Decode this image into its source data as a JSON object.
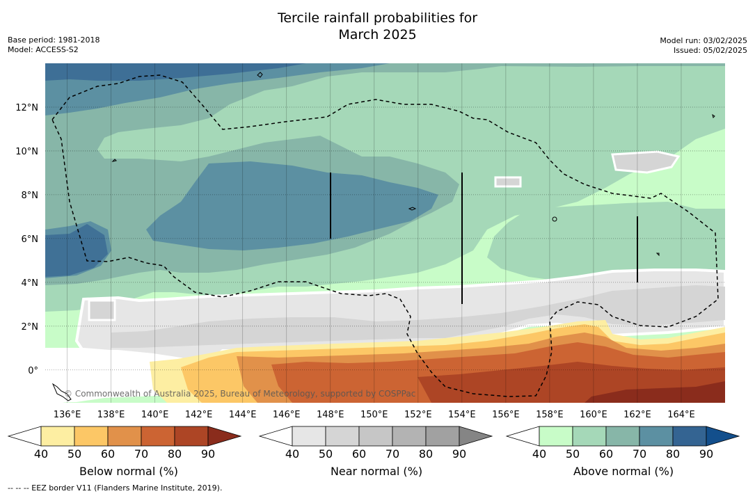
{
  "title_line1": "Tercile rainfall probabilities for",
  "title_line2": "March 2025",
  "base_period": "Base period: 1981-2018",
  "model": "Model: ACCESS-S2",
  "model_run": "Model run: 03/02/2025",
  "issued": "Issued: 05/02/2025",
  "copyright": "© Commonwealth of Australia 2025, Bureau of Meteorology, supported by COSPPac",
  "footnote": "-- -- -- EEZ border V11 (Flanders Marine Institute, 2019).",
  "map": {
    "lat_labels": [
      "12°N",
      "10°N",
      "8°N",
      "6°N",
      "4°N",
      "2°N",
      "0°"
    ],
    "lon_labels": [
      "136°E",
      "138°E",
      "140°E",
      "142°E",
      "144°E",
      "146°E",
      "148°E",
      "150°E",
      "152°E",
      "154°E",
      "156°E",
      "158°E",
      "160°E",
      "162°E",
      "164°E"
    ],
    "lat_values": [
      12,
      10,
      8,
      6,
      4,
      2,
      0
    ],
    "lon_values": [
      136,
      138,
      140,
      142,
      144,
      146,
      148,
      150,
      152,
      154,
      156,
      158,
      160,
      162,
      164
    ],
    "lon_range": [
      135,
      166
    ],
    "lat_range": [
      -1.5,
      14
    ]
  },
  "legends": [
    {
      "title": "Below normal (%)",
      "ticks": [
        "40",
        "50",
        "60",
        "70",
        "80",
        "90"
      ],
      "colors": [
        "#fdeea2",
        "#fcc766",
        "#e1914a",
        "#cc6433",
        "#ad4525",
        "#8a2c1c"
      ]
    },
    {
      "title": "Near normal (%)",
      "ticks": [
        "40",
        "50",
        "60",
        "70",
        "80",
        "90"
      ],
      "colors": [
        "#e6e6e6",
        "#d5d5d5",
        "#c6c6c6",
        "#b3b3b3",
        "#a1a1a1",
        "#858585"
      ]
    },
    {
      "title": "Above normal (%)",
      "ticks": [
        "40",
        "50",
        "60",
        "70",
        "80",
        "90"
      ],
      "colors": [
        "#c8fcc8",
        "#a5d8b8",
        "#87b6a8",
        "#5c90a2",
        "#346492",
        "#134f8c"
      ]
    }
  ]
}
